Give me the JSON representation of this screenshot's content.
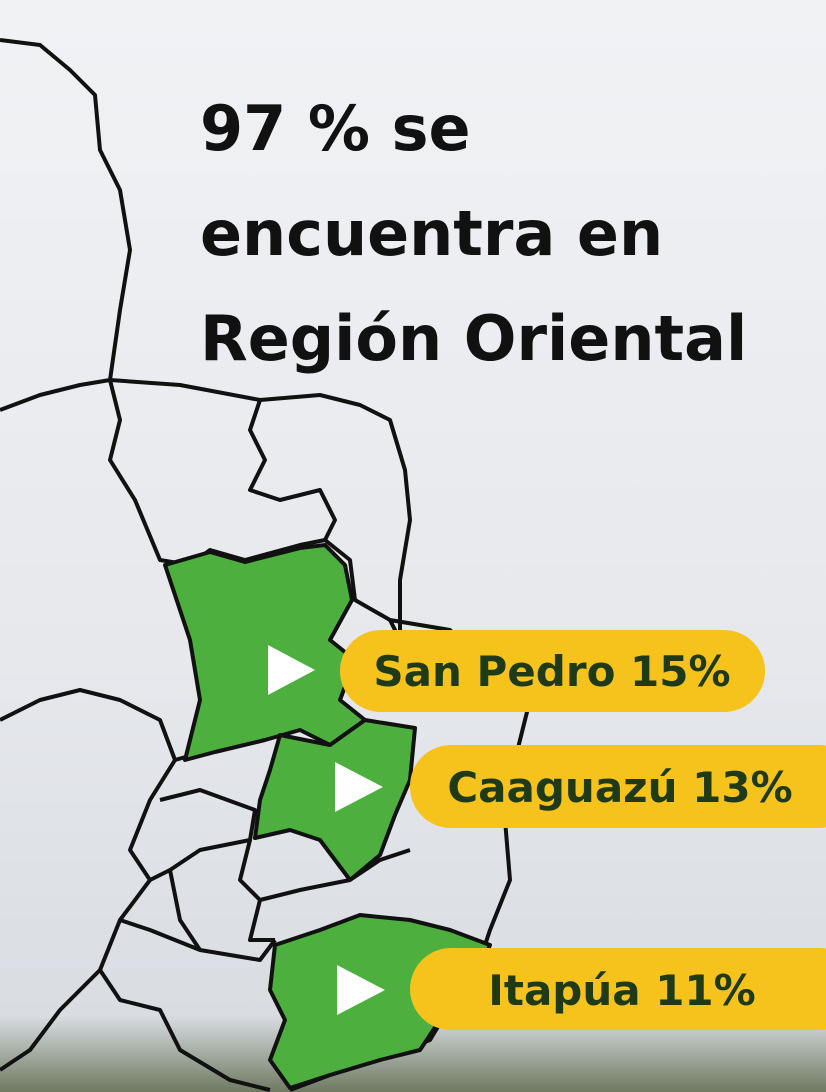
{
  "headline": {
    "lines": [
      "97 % se",
      "encuentra en",
      "Región Oriental"
    ]
  },
  "labels": [
    "San Pedro 15%",
    "Caaguazú 13%",
    "Itapúa 11%"
  ]
}
